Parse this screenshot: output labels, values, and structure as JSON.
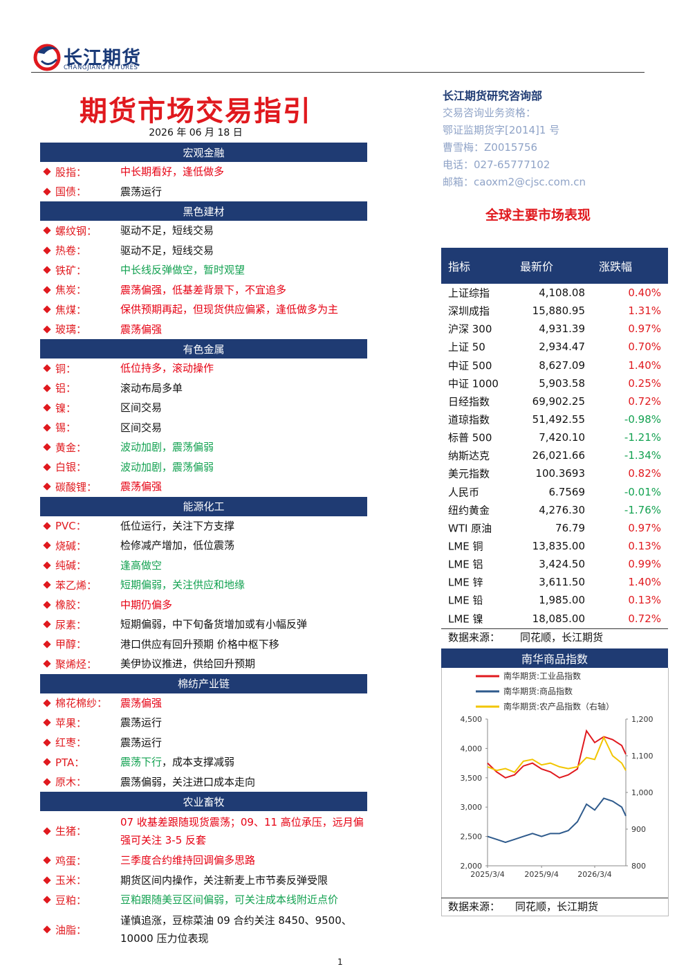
{
  "header": {
    "logo_cn": "长江期货",
    "logo_en": "CHANGJIANG FUTURES"
  },
  "title": "期货市场交易指引",
  "date": "2026 年 06 月 18 日",
  "guide": {
    "sections": [
      {
        "name": "宏观金融",
        "items": [
          {
            "label": "股指：",
            "parts": [
              {
                "text": "中长期看好，逢低做多",
                "color": "#e60012"
              }
            ]
          },
          {
            "label": "国债：",
            "parts": [
              {
                "text": "震荡运行",
                "color": "#111111"
              }
            ]
          }
        ]
      },
      {
        "name": "黑色建材",
        "items": [
          {
            "label": "螺纹钢：",
            "parts": [
              {
                "text": "驱动不足，短线交易",
                "color": "#111111"
              }
            ]
          },
          {
            "label": "热卷：",
            "parts": [
              {
                "text": "驱动不足，短线交易",
                "color": "#111111"
              }
            ]
          },
          {
            "label": "铁矿：",
            "parts": [
              {
                "text": "中长线反弹做空，暂时观望",
                "color": "#12a150"
              }
            ]
          },
          {
            "label": "焦炭：",
            "parts": [
              {
                "text": "震荡偏强，低基差背景下，不宜追多",
                "color": "#e60012"
              }
            ]
          },
          {
            "label": "焦煤：",
            "parts": [
              {
                "text": "保供预期再起，但现货供应偏紧，逢低做多为主",
                "color": "#e60012"
              }
            ]
          },
          {
            "label": "玻璃：",
            "parts": [
              {
                "text": "震荡偏强",
                "color": "#e60012"
              }
            ]
          }
        ]
      },
      {
        "name": "有色金属",
        "items": [
          {
            "label": "铜：",
            "parts": [
              {
                "text": "低位持多，滚动操作",
                "color": "#e60012"
              }
            ]
          },
          {
            "label": "铝：",
            "parts": [
              {
                "text": "滚动布局多单",
                "color": "#111111"
              }
            ]
          },
          {
            "label": "镍：",
            "parts": [
              {
                "text": "区间交易",
                "color": "#111111"
              }
            ]
          },
          {
            "label": "锡：",
            "parts": [
              {
                "text": "区间交易",
                "color": "#111111"
              }
            ]
          },
          {
            "label": "黄金：",
            "parts": [
              {
                "text": "波动加剧，震荡偏弱",
                "color": "#12a150"
              }
            ]
          },
          {
            "label": "白银：",
            "parts": [
              {
                "text": "波动加剧，震荡偏弱",
                "color": "#12a150"
              }
            ]
          },
          {
            "label": "碳酸锂：",
            "parts": [
              {
                "text": "震荡偏强",
                "color": "#e60012"
              }
            ]
          }
        ]
      },
      {
        "name": "能源化工",
        "items": [
          {
            "label": "PVC：",
            "parts": [
              {
                "text": "低位运行，关注下方支撑",
                "color": "#111111"
              }
            ]
          },
          {
            "label": "烧碱：",
            "parts": [
              {
                "text": "检修减产增加，低位震荡",
                "color": "#111111"
              }
            ]
          },
          {
            "label": "纯碱：",
            "parts": [
              {
                "text": "逢高做空",
                "color": "#12a150"
              }
            ]
          },
          {
            "label": "苯乙烯：",
            "parts": [
              {
                "text": "短期偏弱，关注供应和地缘",
                "color": "#12a150"
              }
            ]
          },
          {
            "label": "橡胶：",
            "parts": [
              {
                "text": "中期仍偏多",
                "color": "#e60012"
              }
            ]
          },
          {
            "label": "尿素：",
            "parts": [
              {
                "text": "短期偏弱，中下旬备货增加或有小幅反弹",
                "color": "#111111"
              }
            ]
          },
          {
            "label": "甲醇：",
            "parts": [
              {
                "text": "港口供应有回升预期 价格中枢下移",
                "color": "#111111"
              }
            ]
          },
          {
            "label": "聚烯烃：",
            "parts": [
              {
                "text": "美伊协议推进，供给回升预期",
                "color": "#111111"
              }
            ]
          }
        ]
      },
      {
        "name": "棉纺产业链",
        "items": [
          {
            "label": "棉花棉纱：",
            "parts": [
              {
                "text": "震荡偏强",
                "color": "#e60012"
              }
            ]
          },
          {
            "label": "苹果：",
            "parts": [
              {
                "text": "震荡运行",
                "color": "#111111"
              }
            ]
          },
          {
            "label": "红枣：",
            "parts": [
              {
                "text": "震荡运行",
                "color": "#111111"
              }
            ]
          },
          {
            "label": "PTA：",
            "parts": [
              {
                "text": "震荡下行",
                "color": "#12a150"
              },
              {
                "text": "，成本支撑减弱",
                "color": "#111111"
              }
            ]
          },
          {
            "label": "原木：",
            "parts": [
              {
                "text": "震荡偏弱，关注进口成本走向",
                "color": "#111111"
              }
            ]
          }
        ]
      },
      {
        "name": "农业畜牧",
        "items": [
          {
            "label": "生猪：",
            "parts": [
              {
                "text": "07 收基差跟随现货震荡；09、11 高位承压，远月偏强可关注 3-5 反套",
                "color": "#e60012"
              }
            ]
          },
          {
            "label": "鸡蛋：",
            "parts": [
              {
                "text": "三季度合约维持回调偏多思路",
                "color": "#e60012"
              }
            ]
          },
          {
            "label": "玉米：",
            "parts": [
              {
                "text": "期货区间内操作，关注新麦上市节奏反弹受限",
                "color": "#111111"
              }
            ]
          },
          {
            "label": "豆粕：",
            "parts": [
              {
                "text": "豆粕跟随美豆区间偏弱，可关注成本线附近点价",
                "color": "#12a150"
              }
            ]
          },
          {
            "label": "油脂：",
            "parts": [
              {
                "text": "谨慎追涨，豆棕菜油 09 合约关注 8450、9500、10000 压力位表现",
                "color": "#111111"
              }
            ]
          }
        ]
      }
    ]
  },
  "contact": {
    "dept": "长江期货研究咨询部",
    "lines": [
      "交易咨询业务资格：",
      "鄂证监期货字[2014]1 号",
      "曹雪梅：Z0015756",
      "电话：027-65777102",
      "邮箱：caoxm2@cjsc.com.cn"
    ]
  },
  "market": {
    "title": "全球主要市场表现",
    "columns": [
      "指标",
      "最新价",
      "涨跌幅"
    ],
    "rows": [
      [
        "上证综指",
        "4,108.08",
        "0.40%"
      ],
      [
        "深圳成指",
        "15,880.95",
        "1.31%"
      ],
      [
        "沪深 300",
        "4,931.39",
        "0.97%"
      ],
      [
        "上证 50",
        "2,934.47",
        "0.70%"
      ],
      [
        "中证 500",
        "8,627.09",
        "1.40%"
      ],
      [
        "中证 1000",
        "5,903.58",
        "0.25%"
      ],
      [
        "日经指数",
        "69,902.25",
        "0.72%"
      ],
      [
        "道琼指数",
        "51,492.55",
        "-0.98%"
      ],
      [
        "标普 500",
        "7,420.10",
        "-1.21%"
      ],
      [
        "纳斯达克",
        "26,021.66",
        "-1.34%"
      ],
      [
        "美元指数",
        "100.3693",
        "0.82%"
      ],
      [
        "人民币",
        "6.7569",
        "-0.01%"
      ],
      [
        "纽约黄金",
        "4,276.30",
        "-1.76%"
      ],
      [
        "WTI 原油",
        "76.79",
        "0.97%"
      ],
      [
        "LME 铜",
        "13,835.00",
        "0.13%"
      ],
      [
        "LME 铝",
        "3,424.50",
        "0.99%"
      ],
      [
        "LME 锌",
        "3,611.50",
        "1.40%"
      ],
      [
        "LME 铅",
        "1,985.00",
        "0.13%"
      ],
      [
        "LME 镍",
        "18,085.00",
        "0.72%"
      ]
    ],
    "source_label": "数据来源：",
    "source": "同花顺，长江期货"
  },
  "chart_data": {
    "type": "line",
    "title": "南华商品指数",
    "x": [
      "2025-03-04",
      "2025-04-04",
      "2025-05-04",
      "2025-06-04",
      "2025-07-04",
      "2025-08-04",
      "2025-09-04",
      "2025-10-04",
      "2025-11-04",
      "2025-12-04",
      "2026-01-04",
      "2026-02-04",
      "2026-03-04",
      "2026-04-04",
      "2026-05-04",
      "2026-06-04",
      "2026-06-18"
    ],
    "series": [
      {
        "name": "南华期货:工业品指数",
        "color": "#e0191e",
        "values": [
          3750,
          3600,
          3500,
          3550,
          3700,
          3750,
          3650,
          3600,
          3500,
          3550,
          3650,
          4300,
          4100,
          4200,
          4150,
          4050,
          3900
        ]
      },
      {
        "name": "南华期货:商品指数",
        "color": "#2e5a8c",
        "values": [
          2500,
          2450,
          2400,
          2450,
          2500,
          2550,
          2500,
          2550,
          2550,
          2600,
          2750,
          3050,
          2950,
          3150,
          3100,
          3000,
          2850
        ]
      },
      {
        "name": "南华期货:农产品指数（右轴）",
        "color": "#f2c500",
        "axis": "y2",
        "values": [
          1070,
          1060,
          1065,
          1055,
          1085,
          1090,
          1075,
          1080,
          1070,
          1065,
          1070,
          1095,
          1090,
          1150,
          1100,
          1080,
          1060
        ]
      }
    ],
    "xlim": [
      "2025-03-04",
      "2026-06-18"
    ],
    "xticks": [
      {
        "value": "2025-03-04",
        "label": "2025/3/4"
      },
      {
        "value": "2025-09-04",
        "label": "2025/9/4"
      },
      {
        "value": "2026-03-04",
        "label": "2026/3/4"
      }
    ],
    "ylim": [
      2000,
      4500
    ],
    "yticks": [
      {
        "value": 2000,
        "label": "2,000"
      },
      {
        "value": 2500,
        "label": "2,500"
      },
      {
        "value": 3000,
        "label": "3,000"
      },
      {
        "value": 3500,
        "label": "3,500"
      },
      {
        "value": 4000,
        "label": "4,000"
      },
      {
        "value": 4500,
        "label": "4,500"
      }
    ],
    "y2lim": [
      800,
      1200
    ],
    "y2ticks": [
      800,
      {
        "value": 900,
        "label": "900"
      },
      {
        "value": 1000,
        "label": "1,000"
      },
      {
        "value": 1100,
        "label": "1,100"
      },
      {
        "value": 1200,
        "label": "1,200"
      }
    ],
    "grid": false,
    "legend": "top-left"
  },
  "chart_source": {
    "label": "数据来源：",
    "text": "同花顺，长江期货"
  },
  "page_number": "1"
}
